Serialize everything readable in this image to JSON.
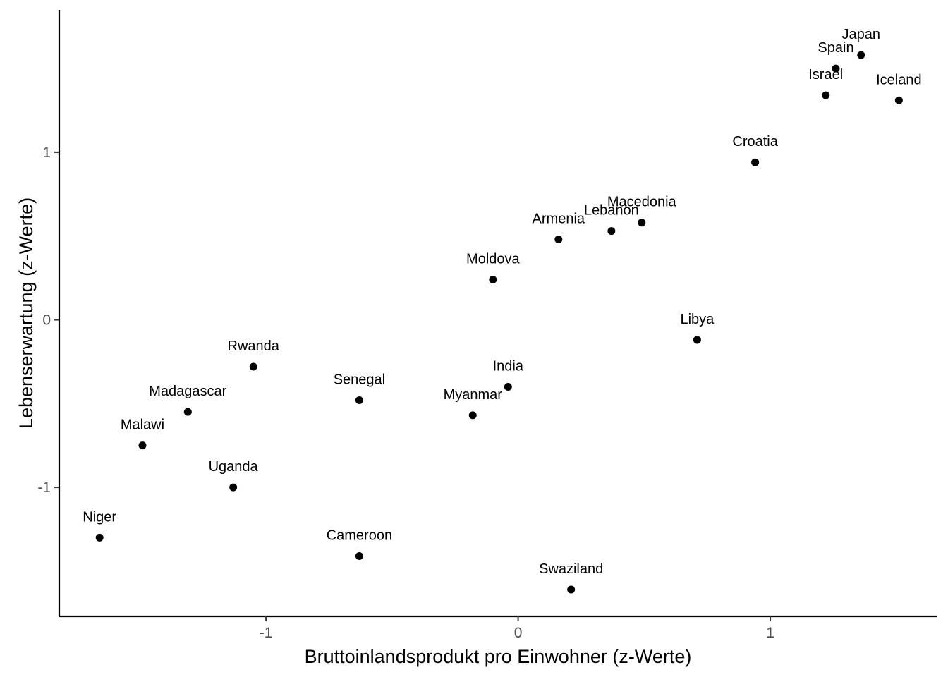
{
  "chart_data": {
    "type": "scatter",
    "title": "",
    "xlabel": "Bruttoinlandsprodukt pro Einwohner (z-Werte)",
    "ylabel": "Lebenserwartung (z-Werte)",
    "xlim": [
      -1.82,
      1.66
    ],
    "ylim": [
      -1.77,
      1.85
    ],
    "x_ticks": [
      -1,
      0,
      1
    ],
    "x_tick_labels": [
      "-1",
      "0",
      "1"
    ],
    "y_ticks": [
      -1,
      0,
      1
    ],
    "y_tick_labels": [
      "-1",
      "0",
      "1"
    ],
    "grid": false,
    "legend": "none",
    "point_color": "#000000",
    "points": [
      {
        "label": "Japan",
        "x": 1.36,
        "y": 1.58
      },
      {
        "label": "Spain",
        "x": 1.26,
        "y": 1.5
      },
      {
        "label": "Israel",
        "x": 1.22,
        "y": 1.34
      },
      {
        "label": "Iceland",
        "x": 1.51,
        "y": 1.31
      },
      {
        "label": "Croatia",
        "x": 0.94,
        "y": 0.94
      },
      {
        "label": "Macedonia",
        "x": 0.49,
        "y": 0.58
      },
      {
        "label": "Lebanon",
        "x": 0.37,
        "y": 0.53
      },
      {
        "label": "Armenia",
        "x": 0.16,
        "y": 0.48
      },
      {
        "label": "Moldova",
        "x": -0.1,
        "y": 0.24
      },
      {
        "label": "Libya",
        "x": 0.71,
        "y": -0.12
      },
      {
        "label": "Rwanda",
        "x": -1.05,
        "y": -0.28
      },
      {
        "label": "Senegal",
        "x": -0.63,
        "y": -0.48
      },
      {
        "label": "India",
        "x": -0.04,
        "y": -0.4
      },
      {
        "label": "Myanmar",
        "x": -0.18,
        "y": -0.57
      },
      {
        "label": "Madagascar",
        "x": -1.31,
        "y": -0.55
      },
      {
        "label": "Malawi",
        "x": -1.49,
        "y": -0.75
      },
      {
        "label": "Uganda",
        "x": -1.13,
        "y": -1.0
      },
      {
        "label": "Niger",
        "x": -1.66,
        "y": -1.3
      },
      {
        "label": "Cameroon",
        "x": -0.63,
        "y": -1.41
      },
      {
        "label": "Swaziland",
        "x": 0.21,
        "y": -1.61
      }
    ]
  }
}
